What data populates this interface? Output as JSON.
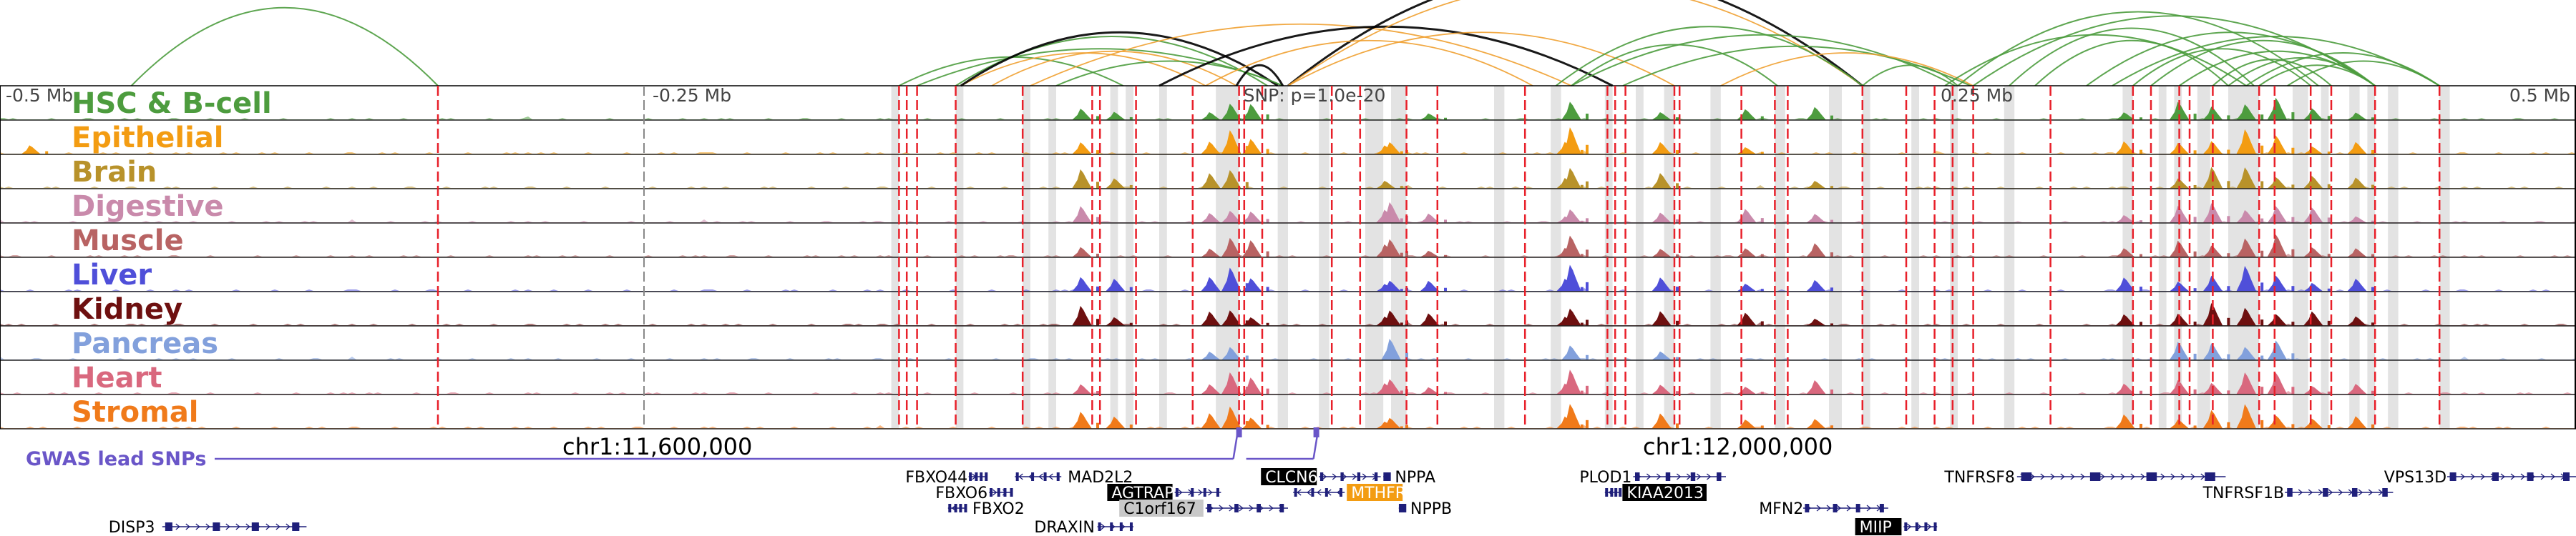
{
  "chart_data": {
    "type": "genome-browser",
    "region": {
      "chrom": "chr1",
      "start": 11340000,
      "end": 12340000,
      "center": 11840000
    },
    "ruler": {
      "ticks": [
        {
          "pos": 11340000,
          "label": "-0.5 Mb"
        },
        {
          "pos": 11590000,
          "label": "-0.25 Mb"
        },
        {
          "pos": 12090000,
          "label": "0.25 Mb"
        },
        {
          "pos": 12340000,
          "label": "0.5 Mb"
        }
      ],
      "dashed_positions": [
        11590000
      ]
    },
    "chrom_labels": [
      {
        "pos": 11600000,
        "label": "chr1:11,600,000"
      },
      {
        "pos": 12000000,
        "label": "chr1:12,000,000"
      }
    ],
    "snp_label": "SNP: p=1.0e-20",
    "tracks": [
      {
        "name": "HSC & B-cell",
        "color": "#4d9c3e"
      },
      {
        "name": "Epithelial",
        "color": "#f39c12"
      },
      {
        "name": "Brain",
        "color": "#b8922a"
      },
      {
        "name": "Digestive",
        "color": "#c98aab"
      },
      {
        "name": "Muscle",
        "color": "#b86363"
      },
      {
        "name": "Liver",
        "color": "#4f4fd9"
      },
      {
        "name": "Kidney",
        "color": "#6e1010"
      },
      {
        "name": "Pancreas",
        "color": "#82a0dc"
      },
      {
        "name": "Heart",
        "color": "#d9687e"
      },
      {
        "name": "Stromal",
        "color": "#f07a1a"
      }
    ],
    "peaks": [
      {
        "pos": 11352000,
        "height": 0.55,
        "tracks": [
          1
        ]
      },
      {
        "pos": 11760000,
        "height": 0.7,
        "tracks": [
          0,
          1,
          2,
          3,
          4,
          5,
          6,
          8,
          9
        ]
      },
      {
        "pos": 11773000,
        "height": 0.45,
        "tracks": [
          0,
          2,
          5,
          6,
          9
        ]
      },
      {
        "pos": 11810000,
        "height": 0.55,
        "tracks": [
          0,
          1,
          2,
          3,
          4,
          5,
          6,
          7,
          8,
          9
        ]
      },
      {
        "pos": 11818000,
        "height": 0.85,
        "tracks": [
          0,
          1,
          2,
          3,
          4,
          5,
          6,
          7,
          8,
          9
        ]
      },
      {
        "pos": 11826000,
        "height": 0.6,
        "tracks": [
          0,
          1,
          3,
          4,
          5,
          6,
          8,
          9
        ]
      },
      {
        "pos": 11878000,
        "height": 0.5,
        "tracks": [
          1,
          2,
          3,
          4,
          5,
          6,
          8,
          9
        ]
      },
      {
        "pos": 11880000,
        "height": 0.75,
        "tracks": [
          1,
          3,
          4,
          5,
          6,
          7,
          8,
          9
        ]
      },
      {
        "pos": 11895000,
        "height": 0.45,
        "tracks": [
          0,
          3,
          4,
          5,
          6,
          8
        ]
      },
      {
        "pos": 11948000,
        "height": 0.45,
        "tracks": [
          1,
          2,
          3,
          4,
          5,
          6,
          8,
          9
        ]
      },
      {
        "pos": 11950000,
        "height": 0.95,
        "tracks": [
          0,
          1,
          2,
          3,
          4,
          5,
          6,
          7,
          8,
          9
        ]
      },
      {
        "pos": 11985000,
        "height": 0.55,
        "tracks": [
          0,
          1,
          2,
          3,
          4,
          5,
          6,
          7,
          8,
          9
        ]
      },
      {
        "pos": 12018000,
        "height": 0.5,
        "tracks": [
          0,
          1,
          3,
          4,
          5,
          6,
          8,
          9
        ]
      },
      {
        "pos": 12045000,
        "height": 0.5,
        "tracks": [
          0,
          2,
          3,
          4,
          5,
          6,
          8,
          9
        ]
      },
      {
        "pos": 12165000,
        "height": 0.5,
        "tracks": [
          0,
          1,
          3,
          4,
          5,
          6,
          8,
          9
        ]
      },
      {
        "pos": 12186000,
        "height": 0.65,
        "tracks": [
          0,
          1,
          2,
          3,
          4,
          5,
          6,
          7,
          8,
          9
        ]
      },
      {
        "pos": 12199000,
        "height": 0.8,
        "tracks": [
          0,
          1,
          2,
          3,
          4,
          5,
          6,
          7,
          8,
          9
        ]
      },
      {
        "pos": 12212000,
        "height": 0.9,
        "tracks": [
          0,
          1,
          2,
          3,
          4,
          5,
          6,
          7,
          8,
          9
        ]
      },
      {
        "pos": 12224000,
        "height": 0.8,
        "tracks": [
          0,
          1,
          2,
          3,
          4,
          5,
          6,
          7,
          8,
          9
        ]
      },
      {
        "pos": 12238000,
        "height": 0.55,
        "tracks": [
          0,
          1,
          2,
          3,
          4,
          5,
          6,
          8,
          9
        ]
      },
      {
        "pos": 12255000,
        "height": 0.45,
        "tracks": [
          0,
          1,
          2,
          3,
          4,
          5,
          6,
          8,
          9
        ]
      }
    ],
    "gray_regions": [
      [
        11686000,
        11689000
      ],
      [
        11711000,
        11714000
      ],
      [
        11737000,
        11740000
      ],
      [
        11747000,
        11750000
      ],
      [
        11771000,
        11774000
      ],
      [
        11777000,
        11780000
      ],
      [
        11790000,
        11793000
      ],
      [
        11812000,
        11821000
      ],
      [
        11836000,
        11840000
      ],
      [
        11852000,
        11856000
      ],
      [
        11870000,
        11877000
      ],
      [
        11880000,
        11886000
      ],
      [
        11920000,
        11924000
      ],
      [
        11942000,
        11946000
      ],
      [
        11963000,
        11966000
      ],
      [
        11975000,
        11978000
      ],
      [
        11986000,
        11990000
      ],
      [
        12004000,
        12008000
      ],
      [
        12029000,
        12033000
      ],
      [
        12050000,
        12055000
      ],
      [
        12063000,
        12066000
      ],
      [
        12082000,
        12085000
      ],
      [
        12097000,
        12100000
      ],
      [
        12118000,
        12122000
      ],
      [
        12164000,
        12168000
      ],
      [
        12178000,
        12181000
      ],
      [
        12184000,
        12187000
      ],
      [
        12193000,
        12198000
      ],
      [
        12205000,
        12217000
      ],
      [
        12230000,
        12236000
      ],
      [
        12241000,
        12244000
      ],
      [
        12252000,
        12256000
      ],
      [
        12259000,
        12262000
      ],
      [
        12267000,
        12271000
      ],
      [
        12287000,
        12291000
      ]
    ],
    "red_lines": [
      11510000,
      11689000,
      11692000,
      11696000,
      11711000,
      11737000,
      11764000,
      11767000,
      11781000,
      11803000,
      11821000,
      11823000,
      11830000,
      11857000,
      11868000,
      11886000,
      11898000,
      11932000,
      11964000,
      11967000,
      11971000,
      11990000,
      11992000,
      12016000,
      12029000,
      12034000,
      12063000,
      12080000,
      12091000,
      12098000,
      12106000,
      12136000,
      12168000,
      12175000,
      12186000,
      12190000,
      12199000,
      12217000,
      12223000,
      12237000,
      12245000,
      12262000,
      12287000
    ],
    "gwas_snps": [
      11821000,
      11851000
    ],
    "gwas_label": "GWAS lead SNPs",
    "loops": [
      {
        "from": 11391000,
        "to": 11510000,
        "color": "green",
        "h": 0.95
      },
      {
        "from": 11689000,
        "to": 11776000,
        "color": "green",
        "h": 0.35
      },
      {
        "from": 11696000,
        "to": 11838000,
        "color": "green",
        "h": 0.45
      },
      {
        "from": 11711000,
        "to": 11832000,
        "color": "green",
        "h": 0.6
      },
      {
        "from": 11713000,
        "to": 11808000,
        "color": "orange",
        "h": 0.4
      },
      {
        "from": 11713000,
        "to": 11836000,
        "color": "black",
        "h": 0.65
      },
      {
        "from": 11725000,
        "to": 11820000,
        "color": "orange",
        "h": 0.42
      },
      {
        "from": 11740000,
        "to": 11950000,
        "color": "orange",
        "h": 0.75
      },
      {
        "from": 11750000,
        "to": 11838000,
        "color": "green",
        "h": 0.3
      },
      {
        "from": 11790000,
        "to": 11966000,
        "color": "black",
        "h": 0.72
      },
      {
        "from": 11820000,
        "to": 11838000,
        "color": "black",
        "h": 0.25
      },
      {
        "from": 11840000,
        "to": 12063000,
        "color": "black",
        "h": 1.4
      },
      {
        "from": 11840000,
        "to": 12063000,
        "color": "orange",
        "h": 1.25
      },
      {
        "from": 11840000,
        "to": 11990000,
        "color": "orange",
        "h": 0.65
      },
      {
        "from": 11808000,
        "to": 11935000,
        "color": "orange",
        "h": 0.55
      },
      {
        "from": 11944000,
        "to": 12063000,
        "color": "green",
        "h": 0.72
      },
      {
        "from": 11950000,
        "to": 12030000,
        "color": "green",
        "h": 0.5
      },
      {
        "from": 11950000,
        "to": 12099000,
        "color": "green",
        "h": 0.62
      },
      {
        "from": 11970000,
        "to": 12105000,
        "color": "green",
        "h": 0.48
      },
      {
        "from": 12008000,
        "to": 12106000,
        "color": "orange",
        "h": 0.4
      },
      {
        "from": 12063000,
        "to": 12100000,
        "color": "green",
        "h": 0.25
      },
      {
        "from": 12100000,
        "to": 12240000,
        "color": "green",
        "h": 0.9
      },
      {
        "from": 12106000,
        "to": 12262000,
        "color": "green",
        "h": 0.85
      },
      {
        "from": 12120000,
        "to": 12215000,
        "color": "green",
        "h": 0.7
      },
      {
        "from": 12130000,
        "to": 12205000,
        "color": "green",
        "h": 0.55
      },
      {
        "from": 12150000,
        "to": 12262000,
        "color": "green",
        "h": 0.65
      },
      {
        "from": 12168000,
        "to": 12237000,
        "color": "green",
        "h": 0.45
      },
      {
        "from": 12175000,
        "to": 12262000,
        "color": "green",
        "h": 0.55
      },
      {
        "from": 12186000,
        "to": 12262000,
        "color": "green",
        "h": 0.42
      },
      {
        "from": 12199000,
        "to": 12245000,
        "color": "green",
        "h": 0.32
      },
      {
        "from": 12205000,
        "to": 12262000,
        "color": "green",
        "h": 0.34
      },
      {
        "from": 12212000,
        "to": 12287000,
        "color": "green",
        "h": 0.4
      },
      {
        "from": 12217000,
        "to": 12262000,
        "color": "green",
        "h": 0.25
      },
      {
        "from": 12228000,
        "to": 12287000,
        "color": "green",
        "h": 0.3
      },
      {
        "from": 12160000,
        "to": 12287000,
        "color": "green",
        "h": 0.6
      },
      {
        "from": 12095000,
        "to": 12212000,
        "color": "green",
        "h": 0.62
      }
    ],
    "genes": [
      {
        "name": "FBXO44",
        "start": 11716000,
        "end": 11723000,
        "row": 0,
        "strand": "+",
        "label_side": "left"
      },
      {
        "name": "MAD2L2",
        "start": 11734000,
        "end": 11752000,
        "row": 0,
        "strand": "-",
        "label_side": "right"
      },
      {
        "name": "FBXO6",
        "start": 11724000,
        "end": 11733000,
        "row": 1,
        "strand": "+",
        "label_side": "left"
      },
      {
        "name": "AGTRAP",
        "start": 11796000,
        "end": 11814000,
        "row": 1,
        "strand": "+",
        "label_side": "left",
        "highlight": "black"
      },
      {
        "name": "FBXO2",
        "start": 11708000,
        "end": 11715000,
        "row": 2,
        "strand": "-",
        "label_side": "right"
      },
      {
        "name": "C1orf167",
        "start": 11808000,
        "end": 11840000,
        "row": 2,
        "strand": "+",
        "label_side": "left",
        "highlight": "gray"
      },
      {
        "name": "DRAXIN",
        "start": 11766000,
        "end": 11780000,
        "row": 3,
        "strand": "+",
        "label_side": "left"
      },
      {
        "name": "DISP3",
        "start": 11403000,
        "end": 11459000,
        "row": 3,
        "strand": "+",
        "label_side": "left"
      },
      {
        "name": "CLCN6",
        "start": 11852000,
        "end": 11876000,
        "row": 0,
        "strand": "+",
        "label_side": "left",
        "highlight": "black"
      },
      {
        "name": "NPPA",
        "start": 11877000,
        "end": 11879000,
        "row": 0,
        "strand": "-",
        "label_side": "right"
      },
      {
        "name": "MTHFR",
        "start": 11842000,
        "end": 11862000,
        "row": 1,
        "strand": "-",
        "label_side": "right",
        "highlight": "orange"
      },
      {
        "name": "NPPB",
        "start": 11883000,
        "end": 11885000,
        "row": 2,
        "strand": "-",
        "label_side": "right"
      },
      {
        "name": "PLOD1",
        "start": 11974000,
        "end": 12010000,
        "row": 0,
        "strand": "+",
        "label_side": "left"
      },
      {
        "name": "KIAA2013",
        "start": 11963000,
        "end": 11969000,
        "row": 1,
        "strand": "-",
        "label_side": "right",
        "highlight": "black"
      },
      {
        "name": "MFN2",
        "start": 12040000,
        "end": 12073000,
        "row": 2,
        "strand": "+",
        "label_side": "left"
      },
      {
        "name": "MIIP",
        "start": 12079000,
        "end": 12092000,
        "row": 3,
        "strand": "+",
        "label_side": "left",
        "highlight": "black"
      },
      {
        "name": "TNFRSF8",
        "start": 12123000,
        "end": 12204000,
        "row": 0,
        "strand": "+",
        "label_side": "left"
      },
      {
        "name": "TNFRSF1B",
        "start": 12227000,
        "end": 12269000,
        "row": 1,
        "strand": "+",
        "label_side": "left"
      },
      {
        "name": "VPS13D",
        "start": 12290000,
        "end": 12340000,
        "row": 0,
        "strand": "+",
        "label_side": "left"
      }
    ]
  },
  "colors": {
    "loop_green": "#4d9c3e",
    "loop_orange": "#f0a030",
    "loop_black": "#000000",
    "red_line": "#e8202a",
    "gray_band": "#d9d9d9",
    "gene": "#1f1f7a",
    "gwas": "#6a56c8"
  }
}
